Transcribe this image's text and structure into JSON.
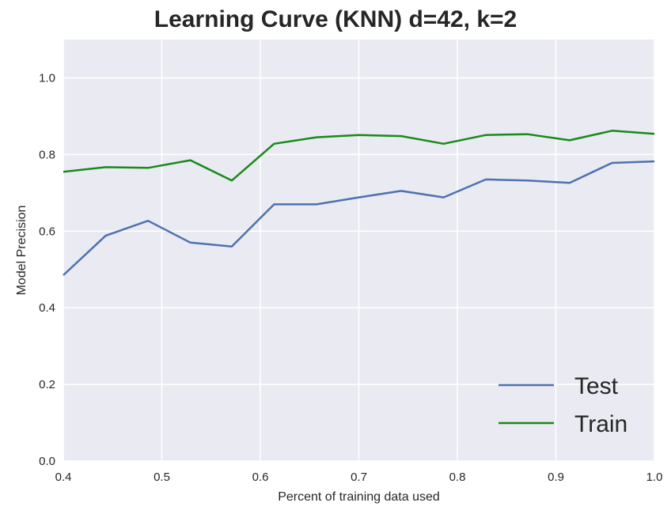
{
  "chart_data": {
    "type": "line",
    "title": "Learning Curve (KNN) d=42, k=2",
    "xlabel": "Percent of training data used",
    "ylabel": "Model Precision",
    "xlim": [
      0.4,
      1.0
    ],
    "ylim": [
      0.0,
      1.1
    ],
    "xticks": [
      "0.4",
      "0.5",
      "0.6",
      "0.7",
      "0.8",
      "0.9",
      "1.0"
    ],
    "yticks": [
      "0.0",
      "0.2",
      "0.4",
      "0.6",
      "0.8",
      "1.0"
    ],
    "grid": true,
    "legend_position": "lower-right",
    "x": [
      0.4,
      0.443,
      0.486,
      0.529,
      0.571,
      0.614,
      0.657,
      0.7,
      0.743,
      0.786,
      0.829,
      0.871,
      0.914,
      0.957,
      1.0
    ],
    "series": [
      {
        "name": "Test",
        "color": "#4c72b0",
        "values": [
          0.485,
          0.588,
          0.627,
          0.57,
          0.56,
          0.67,
          0.67,
          0.688,
          0.705,
          0.688,
          0.735,
          0.732,
          0.726,
          0.778,
          0.782
        ]
      },
      {
        "name": "Train",
        "color": "#188a18",
        "values": [
          0.755,
          0.767,
          0.765,
          0.785,
          0.732,
          0.828,
          0.845,
          0.851,
          0.848,
          0.828,
          0.851,
          0.853,
          0.837,
          0.862,
          0.854
        ]
      }
    ]
  }
}
